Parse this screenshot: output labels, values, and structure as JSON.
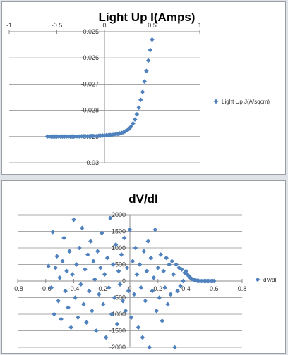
{
  "colors": {
    "marker": "#4f81bd",
    "grid": "#8c8c8c",
    "background": "#dfe3e8"
  },
  "chart_data": [
    {
      "type": "scatter",
      "title": "Light Up I(Amps)",
      "xlim": [
        -1,
        1
      ],
      "ylim": [
        -0.03,
        -0.025
      ],
      "x_ticks": [
        "-1",
        "-0.5",
        "0",
        "0.5",
        "1"
      ],
      "y_ticks": [
        "-0.025",
        "-0.026",
        "-0.027",
        "-0.028",
        "-0.029",
        "-0.03"
      ],
      "x_tick_values": [
        -1,
        -0.5,
        0,
        0.5,
        1
      ],
      "y_tick_values": [
        -0.025,
        -0.026,
        -0.027,
        -0.028,
        -0.029,
        -0.03
      ],
      "grid": "horizontal",
      "legend_position": "right",
      "series": [
        {
          "name": "Light Up J(A/sqcm)",
          "points": [
            [
              -0.6,
              -0.029
            ],
            [
              -0.58,
              -0.029
            ],
            [
              -0.56,
              -0.029
            ],
            [
              -0.54,
              -0.029
            ],
            [
              -0.52,
              -0.029
            ],
            [
              -0.5,
              -0.029
            ],
            [
              -0.48,
              -0.029
            ],
            [
              -0.46,
              -0.029
            ],
            [
              -0.44,
              -0.029
            ],
            [
              -0.42,
              -0.029
            ],
            [
              -0.4,
              -0.029
            ],
            [
              -0.38,
              -0.029
            ],
            [
              -0.36,
              -0.029
            ],
            [
              -0.34,
              -0.029
            ],
            [
              -0.32,
              -0.029
            ],
            [
              -0.3,
              -0.029
            ],
            [
              -0.28,
              -0.029
            ],
            [
              -0.26,
              -0.029
            ],
            [
              -0.24,
              -0.02899
            ],
            [
              -0.22,
              -0.02899
            ],
            [
              -0.2,
              -0.02899
            ],
            [
              -0.18,
              -0.02899
            ],
            [
              -0.16,
              -0.02899
            ],
            [
              -0.14,
              -0.02898
            ],
            [
              -0.12,
              -0.02898
            ],
            [
              -0.1,
              -0.02898
            ],
            [
              -0.08,
              -0.02898
            ],
            [
              -0.06,
              -0.02897
            ],
            [
              -0.04,
              -0.02897
            ],
            [
              -0.02,
              -0.02896
            ],
            [
              0,
              -0.02896
            ],
            [
              0.02,
              -0.02895
            ],
            [
              0.04,
              -0.02895
            ],
            [
              0.06,
              -0.02894
            ],
            [
              0.08,
              -0.02893
            ],
            [
              0.1,
              -0.02892
            ],
            [
              0.12,
              -0.02891
            ],
            [
              0.14,
              -0.0289
            ],
            [
              0.16,
              -0.02888
            ],
            [
              0.18,
              -0.02886
            ],
            [
              0.2,
              -0.02884
            ],
            [
              0.22,
              -0.0288
            ],
            [
              0.24,
              -0.02876
            ],
            [
              0.26,
              -0.0287
            ],
            [
              0.28,
              -0.02862
            ],
            [
              0.3,
              -0.0285
            ],
            [
              0.32,
              -0.02835
            ],
            [
              0.34,
              -0.02815
            ],
            [
              0.36,
              -0.0279
            ],
            [
              0.38,
              -0.0276
            ],
            [
              0.4,
              -0.0273
            ],
            [
              0.42,
              -0.0269
            ],
            [
              0.44,
              -0.0265
            ],
            [
              0.46,
              -0.0261
            ],
            [
              0.48,
              -0.0257
            ],
            [
              0.5,
              -0.0253
            ]
          ]
        }
      ]
    },
    {
      "type": "scatter",
      "title": "dV/dI",
      "xlim": [
        -0.8,
        0.8
      ],
      "ylim": [
        -2000,
        2000
      ],
      "x_ticks": [
        "-0.8",
        "-0.6",
        "-0.4",
        "-0.2",
        "0",
        "0.2",
        "0.4",
        "0.6",
        "0.8"
      ],
      "y_ticks": [
        "2000",
        "1500",
        "1000",
        "500",
        "0",
        "-500",
        "-1000",
        "-1500",
        "-2000"
      ],
      "x_tick_values": [
        -0.8,
        -0.6,
        -0.4,
        -0.2,
        0,
        0.2,
        0.4,
        0.6,
        0.8
      ],
      "y_tick_values": [
        2000,
        1500,
        1000,
        500,
        0,
        -500,
        -1000,
        -1500,
        -2000
      ],
      "grid": "horizontal",
      "legend_position": "right",
      "series": [
        {
          "name": "dV/dI",
          "points": [
            [
              -0.58,
              450
            ],
            [
              -0.56,
              -200
            ],
            [
              -0.55,
              1480
            ],
            [
              -0.54,
              -1000
            ],
            [
              -0.53,
              400
            ],
            [
              -0.52,
              750
            ],
            [
              -0.51,
              -600
            ],
            [
              -0.5,
              100
            ],
            [
              -0.49,
              -1150
            ],
            [
              -0.48,
              600
            ],
            [
              -0.47,
              1300
            ],
            [
              -0.46,
              -300
            ],
            [
              -0.45,
              300
            ],
            [
              -0.44,
              -800
            ],
            [
              -0.43,
              900
            ],
            [
              -0.42,
              -1400
            ],
            [
              -0.41,
              200
            ],
            [
              -0.4,
              1850
            ],
            [
              -0.39,
              -500
            ],
            [
              -0.38,
              500
            ],
            [
              -0.37,
              -1100
            ],
            [
              -0.36,
              1000
            ],
            [
              -0.35,
              -100
            ],
            [
              -0.34,
              1600
            ],
            [
              -0.33,
              -700
            ],
            [
              -0.32,
              350
            ],
            [
              -0.31,
              -1250
            ],
            [
              -0.3,
              800
            ],
            [
              -0.29,
              -300
            ],
            [
              -0.28,
              1200
            ],
            [
              -0.27,
              -900
            ],
            [
              -0.26,
              600
            ],
            [
              -0.25,
              50
            ],
            [
              -0.24,
              -1500
            ],
            [
              -0.23,
              900
            ],
            [
              -0.22,
              -400
            ],
            [
              -0.21,
              400
            ],
            [
              -0.2,
              1450
            ],
            [
              -0.19,
              -700
            ],
            [
              -0.18,
              200
            ],
            [
              -0.17,
              -1700
            ],
            [
              -0.16,
              700
            ],
            [
              -0.15,
              -200
            ],
            [
              -0.14,
              1900
            ],
            [
              -0.13,
              -1000
            ],
            [
              -0.12,
              500
            ],
            [
              -0.11,
              -500
            ],
            [
              -0.1,
              1100
            ],
            [
              -0.09,
              -1300
            ],
            [
              -0.08,
              300
            ],
            [
              -0.07,
              -100
            ],
            [
              -0.06,
              800
            ],
            [
              -0.05,
              -600
            ],
            [
              -0.04,
              1300
            ],
            [
              -0.03,
              -900
            ],
            [
              -0.02,
              400
            ],
            [
              -0.01,
              -300
            ],
            [
              0,
              1550
            ],
            [
              0.01,
              -1100
            ],
            [
              0.02,
              600
            ],
            [
              0.03,
              -400
            ],
            [
              0.04,
              1000
            ],
            [
              0.05,
              200
            ],
            [
              0.06,
              -1400
            ],
            [
              0.07,
              500
            ],
            [
              0.08,
              -200
            ],
            [
              0.09,
              -1700
            ],
            [
              0.1,
              900
            ],
            [
              0.11,
              -600
            ],
            [
              0.12,
              300
            ],
            [
              0.13,
              1200
            ],
            [
              0.14,
              -2000
            ],
            [
              0.15,
              700
            ],
            [
              0.16,
              -300
            ],
            [
              0.17,
              100
            ],
            [
              0.18,
              1550
            ],
            [
              0.19,
              -900
            ],
            [
              0.2,
              400
            ],
            [
              0.21,
              -500
            ],
            [
              0.22,
              800
            ],
            [
              0.23,
              -1200
            ],
            [
              0.24,
              300
            ],
            [
              0.25,
              -200
            ],
            [
              0.26,
              700
            ],
            [
              0.27,
              -700
            ],
            [
              0.28,
              500
            ],
            [
              0.29,
              -400
            ],
            [
              0.3,
              600
            ],
            [
              0.31,
              200
            ],
            [
              0.32,
              -2000
            ],
            [
              0.33,
              500
            ],
            [
              0.34,
              -300
            ],
            [
              0.35,
              400
            ],
            [
              0.36,
              -150
            ],
            [
              0.37,
              350
            ],
            [
              0.38,
              0
            ],
            [
              0.39,
              250
            ],
            [
              0.4,
              300
            ],
            [
              0.41,
              200
            ],
            [
              0.42,
              150
            ],
            [
              0.43,
              100
            ],
            [
              0.44,
              70
            ],
            [
              0.45,
              50
            ],
            [
              0.46,
              30
            ],
            [
              0.47,
              20
            ],
            [
              0.48,
              10
            ],
            [
              0.49,
              5
            ],
            [
              0.5,
              0
            ],
            [
              0.51,
              0
            ],
            [
              0.52,
              0
            ],
            [
              0.53,
              0
            ],
            [
              0.54,
              0
            ],
            [
              0.55,
              0
            ],
            [
              0.56,
              0
            ],
            [
              0.57,
              0
            ],
            [
              0.58,
              0
            ],
            [
              0.59,
              0
            ],
            [
              0.6,
              0
            ]
          ]
        }
      ]
    }
  ]
}
